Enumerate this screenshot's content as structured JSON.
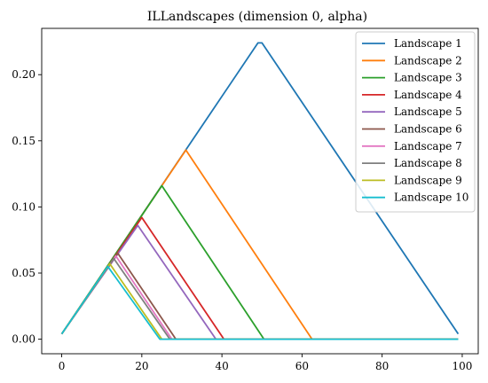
{
  "chart_data": {
    "type": "line",
    "title": "ILLandscapes (dimension 0, alpha)",
    "xlabel": "",
    "ylabel": "",
    "xlim": [
      -5,
      104
    ],
    "ylim": [
      -0.011,
      0.235
    ],
    "xticks": [
      0,
      20,
      40,
      60,
      80,
      100
    ],
    "yticks": [
      0.0,
      0.05,
      0.1,
      0.15,
      0.2
    ],
    "ytick_labels": [
      "0.00",
      "0.05",
      "0.10",
      "0.15",
      "0.20"
    ],
    "xtick_labels": [
      "0",
      "20",
      "40",
      "60",
      "80",
      "100"
    ],
    "legend_position": "top-right",
    "series": [
      {
        "name": "Landscape 1",
        "color": "#1f77b4",
        "x": [
          0,
          49,
          50,
          99
        ],
        "y": [
          0.004,
          0.224,
          0.224,
          0.004
        ]
      },
      {
        "name": "Landscape 2",
        "color": "#ff7f0e",
        "x": [
          0,
          31,
          62.5,
          99
        ],
        "y": [
          0.004,
          0.143,
          0.0,
          0.0
        ]
      },
      {
        "name": "Landscape 3",
        "color": "#2ca02c",
        "x": [
          0,
          25,
          50.5,
          99
        ],
        "y": [
          0.004,
          0.116,
          0.0,
          0.0
        ]
      },
      {
        "name": "Landscape 4",
        "color": "#d62728",
        "x": [
          0,
          20,
          40.5,
          99
        ],
        "y": [
          0.004,
          0.092,
          0.0,
          0.0
        ]
      },
      {
        "name": "Landscape 5",
        "color": "#9467bd",
        "x": [
          0,
          19,
          38.5,
          99
        ],
        "y": [
          0.004,
          0.086,
          0.0,
          0.0
        ]
      },
      {
        "name": "Landscape 6",
        "color": "#8c564b",
        "x": [
          0,
          14,
          28.5,
          99
        ],
        "y": [
          0.004,
          0.065,
          0.0,
          0.0
        ]
      },
      {
        "name": "Landscape 7",
        "color": "#e377c2",
        "x": [
          0,
          13.5,
          27.5,
          99
        ],
        "y": [
          0.004,
          0.063,
          0.0,
          0.0
        ]
      },
      {
        "name": "Landscape 8",
        "color": "#7f7f7f",
        "x": [
          0,
          13,
          27,
          99
        ],
        "y": [
          0.004,
          0.061,
          0.0,
          0.0
        ]
      },
      {
        "name": "Landscape 9",
        "color": "#bcbd22",
        "x": [
          0,
          12,
          25,
          99
        ],
        "y": [
          0.004,
          0.057,
          0.0,
          0.0
        ]
      },
      {
        "name": "Landscape 10",
        "color": "#17becf",
        "x": [
          0,
          11.5,
          24.5,
          99
        ],
        "y": [
          0.004,
          0.055,
          0.0,
          0.0
        ]
      }
    ]
  }
}
